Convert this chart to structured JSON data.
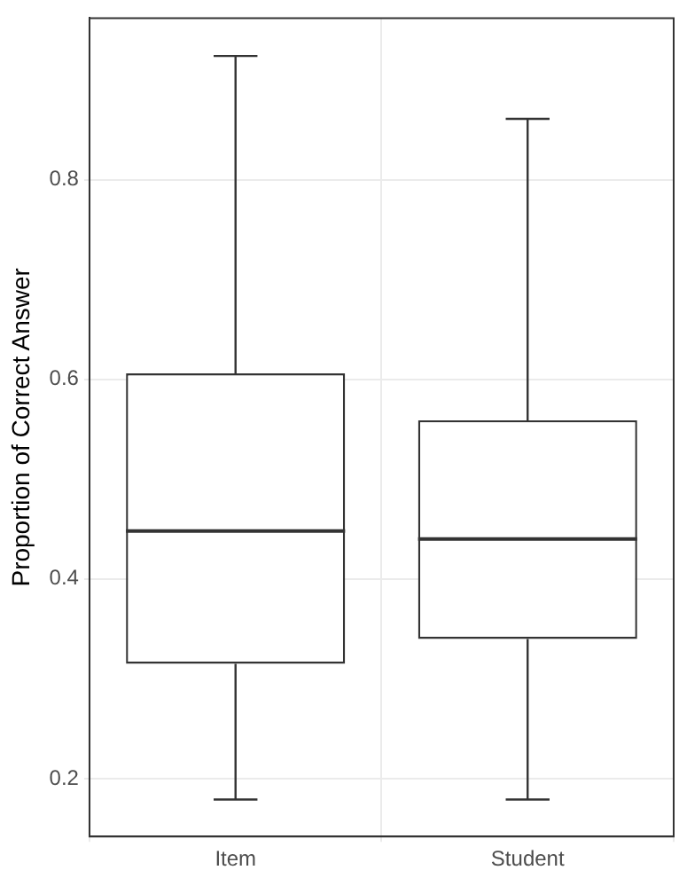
{
  "chart_data": {
    "type": "box",
    "ylabel": "Proportion of Correct Answer",
    "categories": [
      "Item",
      "Student"
    ],
    "color": "#333333",
    "boxes": [
      {
        "low": 0.179,
        "q1": 0.315,
        "median": 0.448,
        "q3": 0.606,
        "high": 0.924
      },
      {
        "low": 0.179,
        "q1": 0.34,
        "median": 0.44,
        "q3": 0.559,
        "high": 0.861
      }
    ],
    "ylim": [
      0.142,
      0.962
    ],
    "yticks": [
      0.2,
      0.4,
      0.6,
      0.8
    ],
    "grid": true,
    "legend": false
  }
}
